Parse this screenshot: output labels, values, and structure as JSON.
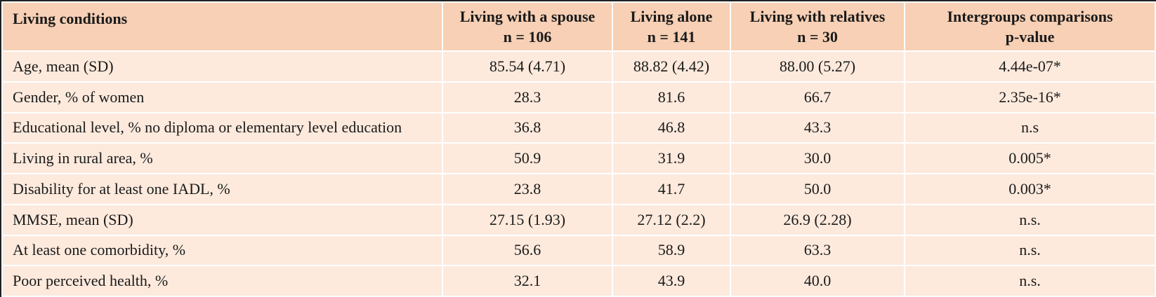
{
  "table": {
    "headers": [
      {
        "lines": [
          "Living conditions"
        ]
      },
      {
        "lines": [
          "Living with a spouse",
          "n = 106"
        ]
      },
      {
        "lines": [
          "Living alone",
          "n = 141"
        ]
      },
      {
        "lines": [
          "Living with relatives",
          "n = 30"
        ]
      },
      {
        "lines": [
          "Intergroups comparisons",
          "p-value"
        ]
      }
    ],
    "rows": [
      [
        "Age, mean (SD)",
        "85.54 (4.71)",
        "88.82 (4.42)",
        "88.00 (5.27)",
        "4.44e-07*"
      ],
      [
        "Gender, % of women",
        "28.3",
        "81.6",
        "66.7",
        "2.35e-16*"
      ],
      [
        "Educational level, % no diploma or elementary level education",
        "36.8",
        "46.8",
        "43.3",
        "n.s"
      ],
      [
        "Living in rural area, %",
        "50.9",
        "31.9",
        "30.0",
        "0.005*"
      ],
      [
        "Disability for at least one IADL, %",
        "23.8",
        "41.7",
        "50.0",
        "0.003*"
      ],
      [
        "MMSE, mean (SD)",
        "27.15 (1.93)",
        "27.12 (2.2)",
        "26.9 (2.28)",
        "n.s."
      ],
      [
        "At least one comorbidity, %",
        "56.6",
        "58.9",
        "63.3",
        "n.s."
      ],
      [
        "Poor perceived health, %",
        "32.1",
        "43.9",
        "40.0",
        "n.s."
      ]
    ]
  },
  "colors": {
    "header_background": "#f7d0b5",
    "body_background": "#fdeadd",
    "border": "#ffffff",
    "outer_border": "#222222"
  }
}
